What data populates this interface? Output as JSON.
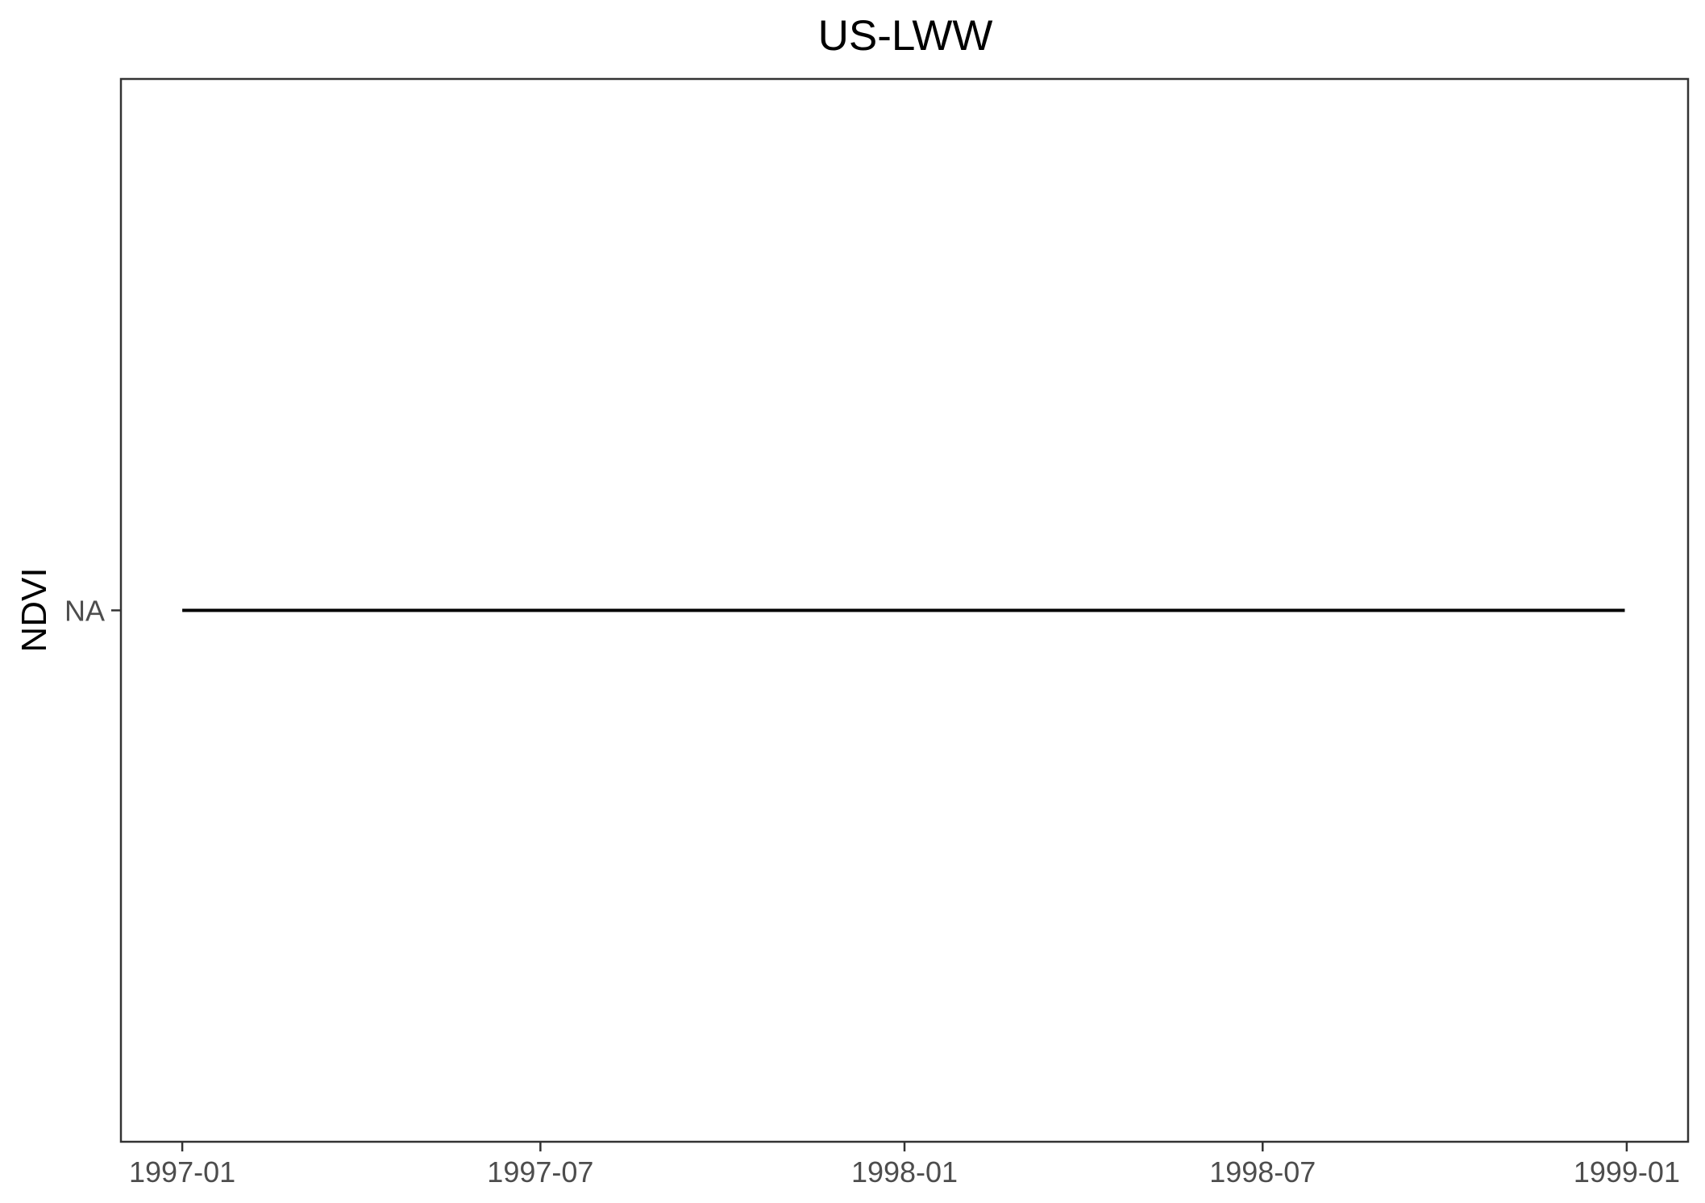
{
  "chart_data": {
    "type": "line",
    "title": "US-LWW",
    "xlabel": "",
    "ylabel": "NDVI",
    "x_ticks": [
      "1997-01",
      "1997-07",
      "1998-01",
      "1998-07",
      "1999-01"
    ],
    "y_ticks": [
      "NA"
    ],
    "xlim": [
      "1996-12-01",
      "1999-02-01"
    ],
    "series": [
      {
        "x": [
          "1997-01-01",
          "1998-12-31"
        ],
        "y": [
          "NA",
          "NA"
        ]
      }
    ],
    "grid": false,
    "legend": "none"
  }
}
